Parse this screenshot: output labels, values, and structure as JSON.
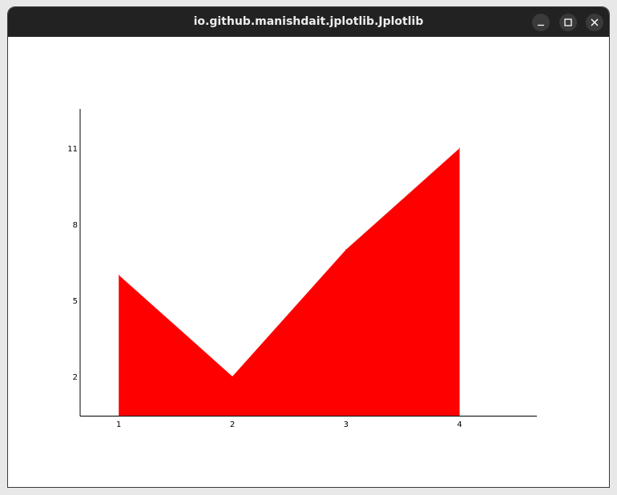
{
  "window": {
    "title": "io.github.manishdait.jplotlib.Jplotlib",
    "buttons": [
      "minimize",
      "maximize",
      "close"
    ]
  },
  "colors": {
    "titlebar": "#222222",
    "fill": "#ff0000",
    "axis": "#000000"
  },
  "chart_data": {
    "type": "area",
    "x": [
      1,
      2,
      3,
      4
    ],
    "y": [
      6,
      2,
      7,
      11
    ],
    "fill_color": "#ff0000",
    "xlim": [
      0.66,
      4.68
    ],
    "ylim": [
      0.45,
      12.55
    ],
    "xticks": [
      1,
      2,
      3,
      4
    ],
    "yticks": [
      2,
      5,
      8,
      11
    ],
    "title": "",
    "xlabel": "",
    "ylabel": "",
    "grid": false,
    "legend": false
  }
}
